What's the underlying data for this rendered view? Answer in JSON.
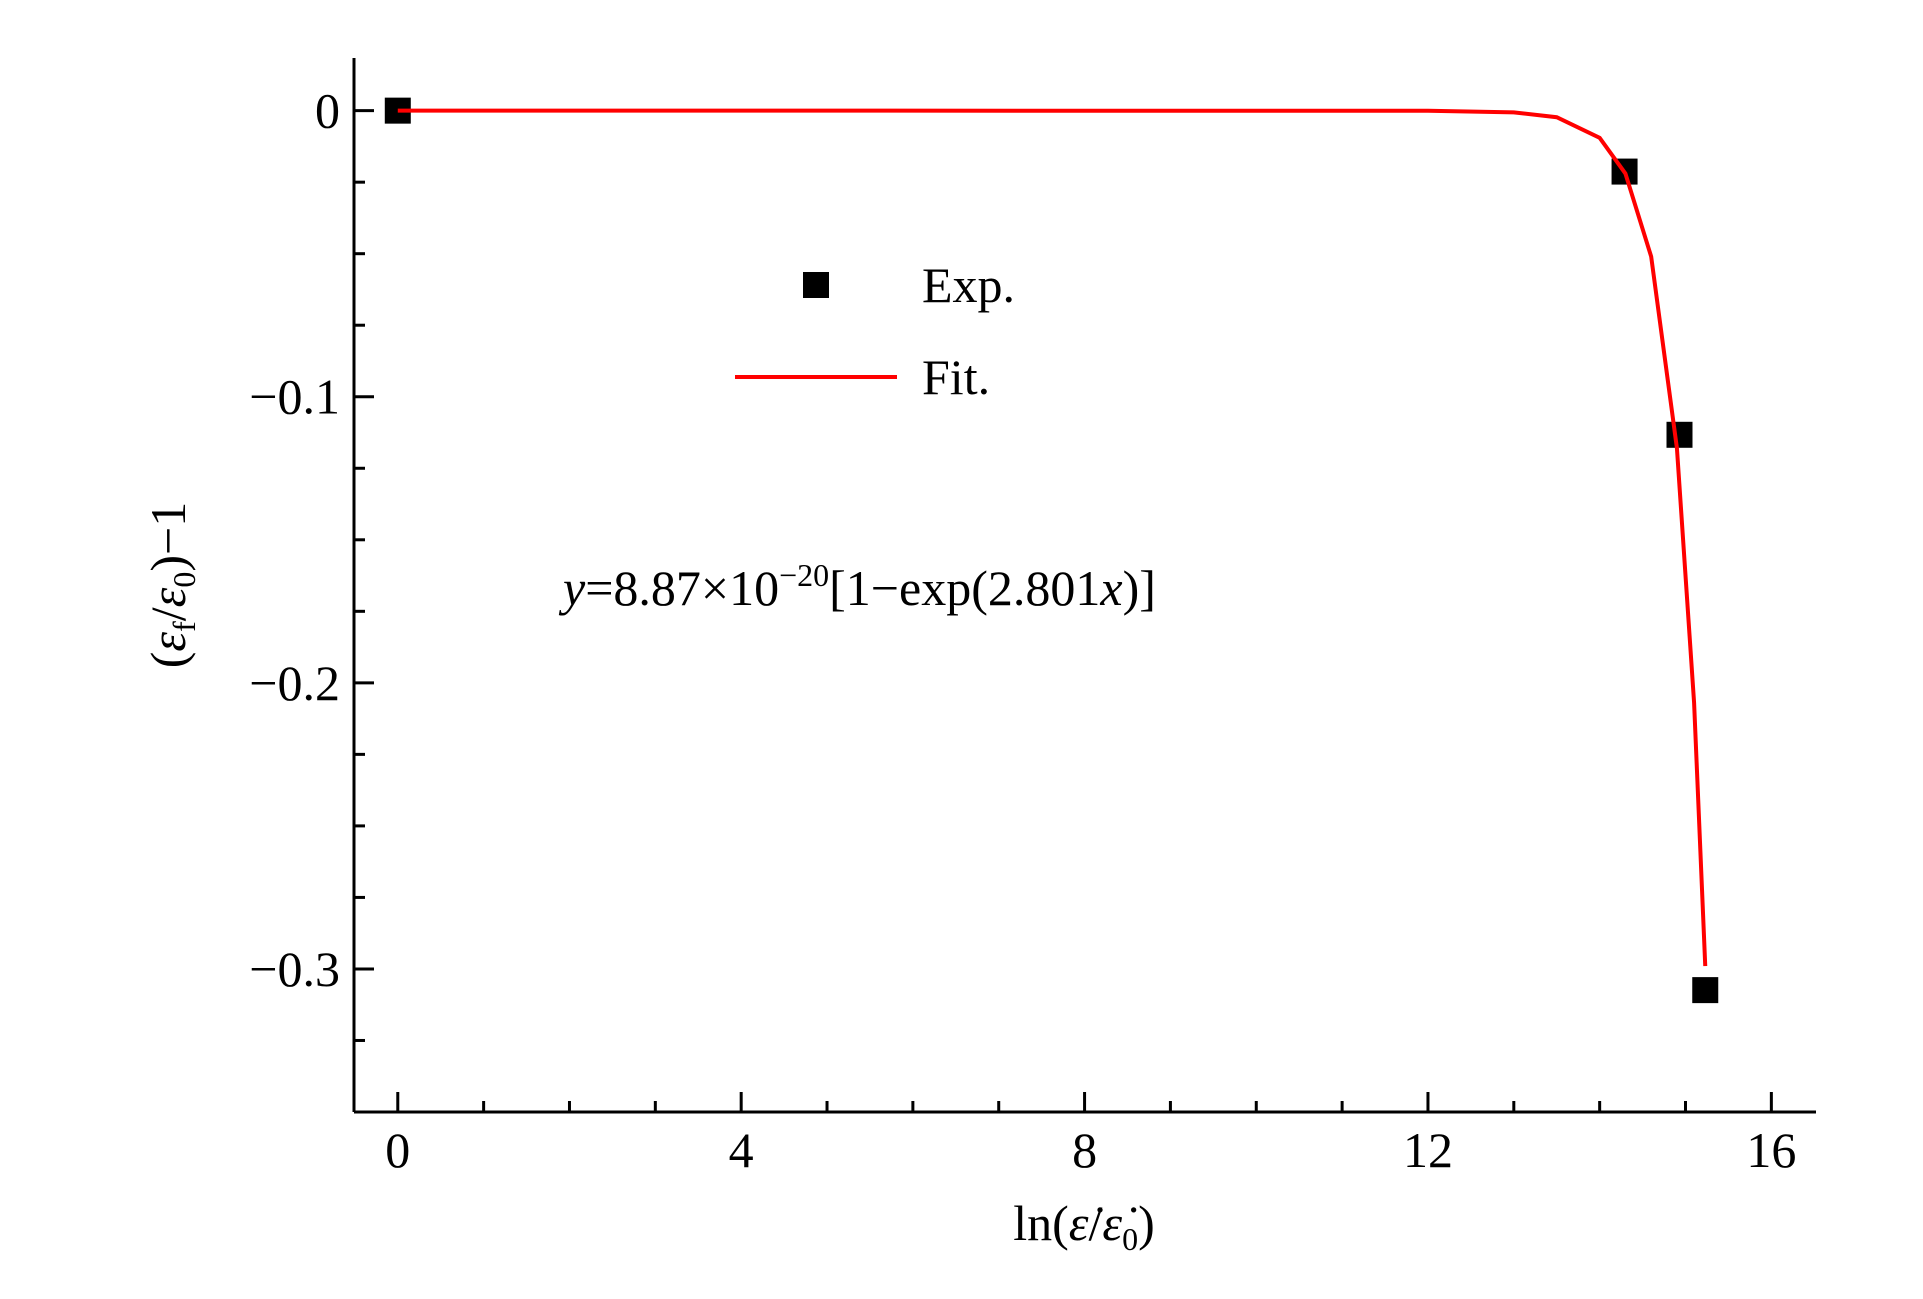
{
  "chart_data": {
    "type": "scatter",
    "xlabel": [
      {
        "text": "ln("
      },
      {
        "text": "ε̇",
        "italic": true
      },
      {
        "text": "/"
      },
      {
        "text": "ε̇",
        "italic": true
      },
      {
        "text": "0",
        "sub": true
      },
      {
        "text": ")"
      }
    ],
    "ylabel": [
      {
        "text": "("
      },
      {
        "text": "ε",
        "italic": true
      },
      {
        "text": "f",
        "sub": true
      },
      {
        "text": "/"
      },
      {
        "text": "ε",
        "italic": true
      },
      {
        "text": "0",
        "sub": true
      },
      {
        "text": ")−1"
      }
    ],
    "annotation": [
      {
        "text": "y",
        "italic": true
      },
      {
        "text": "=8.87×10"
      },
      {
        "text": "−20",
        "sup": true
      },
      {
        "text": "[1−exp(2.801"
      },
      {
        "text": "x",
        "italic": true
      },
      {
        "text": ")]"
      }
    ],
    "xlim": [
      -0.51,
      16.52
    ],
    "ylim": [
      -0.35,
      0.017
    ],
    "xticks": [
      0,
      4,
      8,
      12,
      16
    ],
    "xminor": [
      1,
      2,
      3,
      5,
      6,
      7,
      9,
      10,
      11,
      13,
      14,
      15
    ],
    "yticks": [
      0,
      {
        "value": -0.1,
        "label": "−0.1"
      },
      {
        "value": -0.2,
        "label": "−0.2"
      },
      {
        "value": -0.3,
        "label": "−0.3"
      }
    ],
    "yminor": [
      -0.025,
      -0.05,
      -0.075,
      -0.125,
      -0.15,
      -0.175,
      -0.225,
      -0.25,
      -0.275,
      -0.325
    ],
    "series": [
      {
        "name": "Exp.",
        "kind": "scatter",
        "color": "#000000",
        "x": [
          0,
          14.29,
          14.93,
          15.23
        ],
        "values": [
          0,
          -0.0213,
          -0.1133,
          -0.3074
        ]
      },
      {
        "name": "Fit.",
        "kind": "line",
        "color": "#ff0000",
        "x": [
          0,
          12,
          13,
          13.5,
          14,
          14.3,
          14.6,
          14.9,
          15.1,
          15.23
        ],
        "values": [
          0,
          -3e-05,
          -0.0006,
          -0.0023,
          -0.0095,
          -0.022,
          -0.051,
          -0.118,
          -0.207,
          -0.299
        ]
      }
    ]
  }
}
